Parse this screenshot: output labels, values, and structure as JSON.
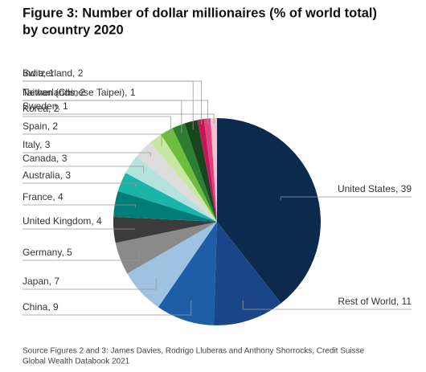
{
  "chart_data": {
    "type": "pie",
    "title": [
      "Figure 3: Number of dollar millionaires (% of world total)",
      "by country 2020"
    ],
    "categories": [
      "United States, 39",
      "Rest of World, 11",
      "China, 9",
      "Japan, 7",
      "Germany, 5",
      "United Kingdom, 4",
      "France, 4",
      "Australia, 3",
      "Canada, 3",
      "Italy, 3",
      "Spain, 2",
      "Korea, 2",
      "Netherlands, 2",
      "Switzerland, 2",
      "India, 1",
      "Taiwan (Chinese Taipei), 1",
      "Sweden, 1"
    ],
    "values": [
      39,
      11,
      9,
      7,
      5,
      4,
      4,
      3,
      3,
      3,
      2,
      2,
      2,
      2,
      1,
      1,
      1
    ],
    "colors": [
      "#0c2a4e",
      "#1a4687",
      "#1d5ea6",
      "#9ec2e2",
      "#8a8a8a",
      "#3b3b3b",
      "#007c79",
      "#1cb3aa",
      "#b4e2dd",
      "#dcdcdc",
      "#c8e7a3",
      "#6cbf3c",
      "#2f7d33",
      "#17451d",
      "#c0185a",
      "#e6407a",
      "#f6bfd2"
    ],
    "source": [
      "Source Figures 2 and 3: James Davies, Rodrigo Lluberas and Anthony Shorrocks, Credit Suisse",
      "Global Wealth Databook 2021"
    ]
  }
}
